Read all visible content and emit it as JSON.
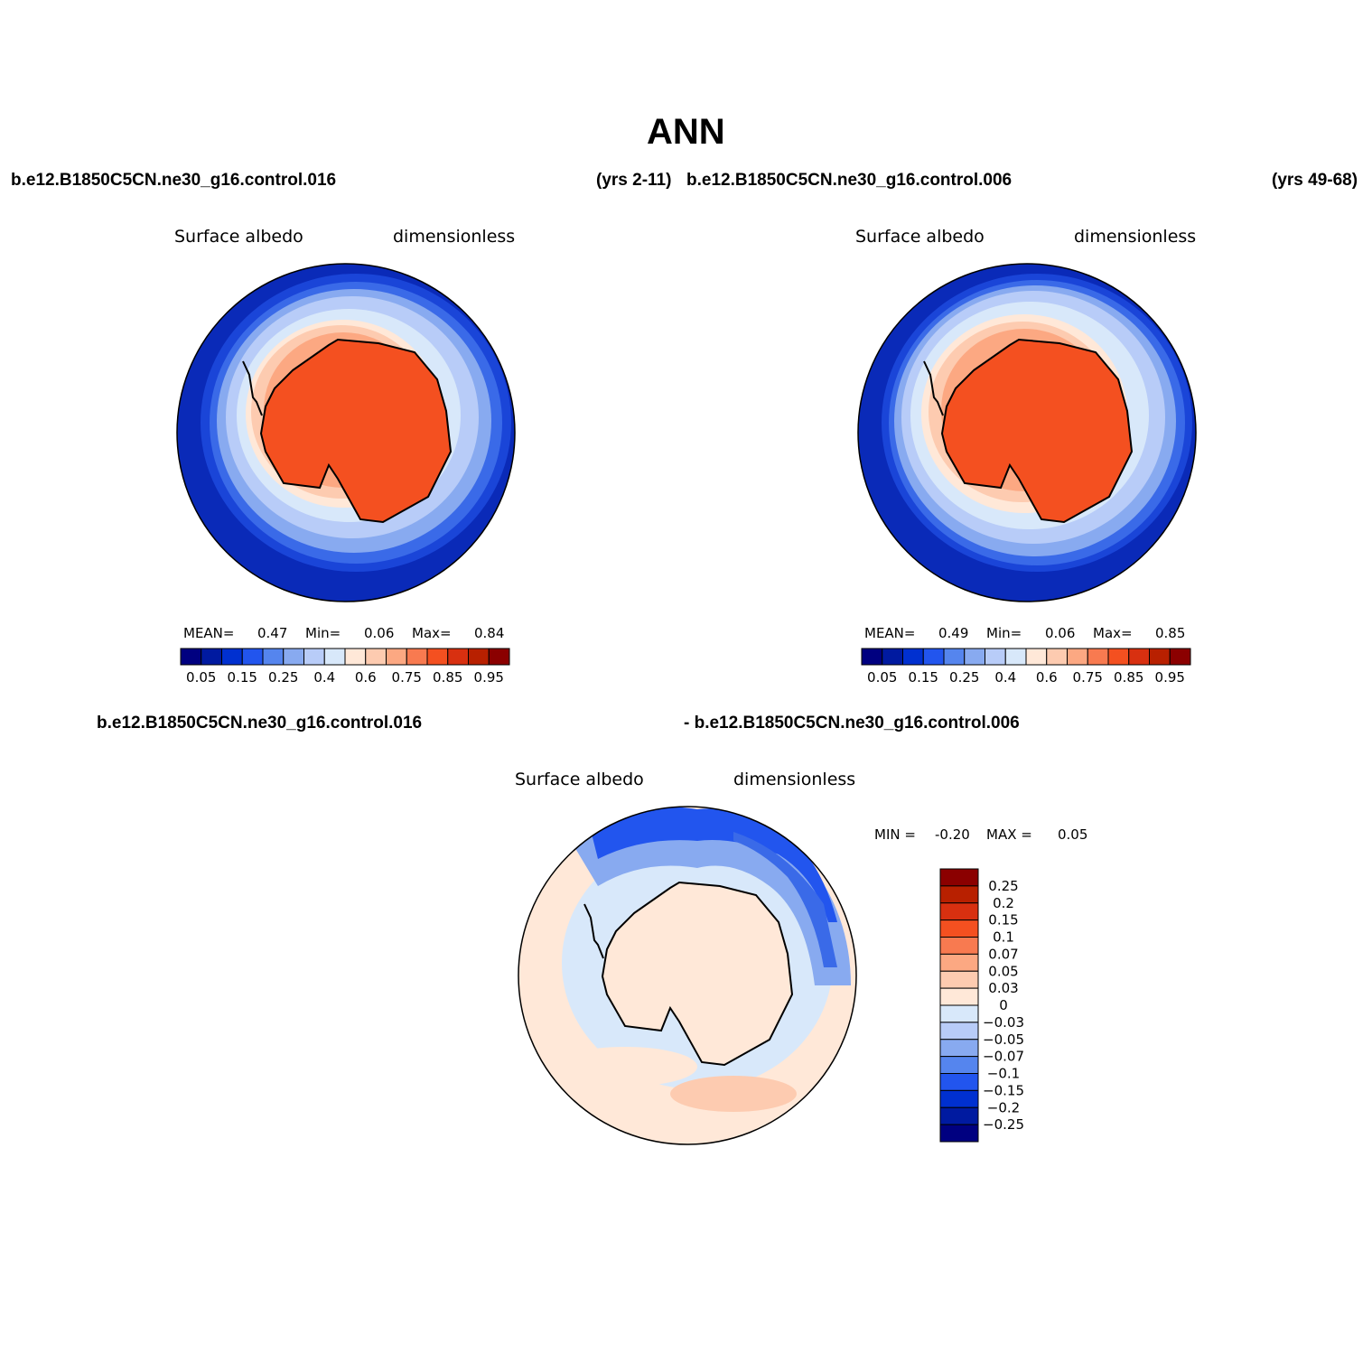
{
  "title": "ANN",
  "top_labels": {
    "left_run": "b.e12.B1850C5CN.ne30_g16.control.016",
    "left_years": "(yrs 2-11)",
    "right_run": "b.e12.B1850C5CN.ne30_g16.control.006",
    "right_years": "(yrs 49-68)"
  },
  "panels": [
    {
      "variable": "Surface albedo",
      "units": "dimensionless",
      "stats": {
        "mean_label": "MEAN=",
        "mean": "0.47",
        "min_label": "Min=",
        "min": "0.06",
        "max_label": "Max=",
        "max": "0.84"
      }
    },
    {
      "variable": "Surface albedo",
      "units": "dimensionless",
      "stats": {
        "mean_label": "MEAN=",
        "mean": "0.49",
        "min_label": "Min=",
        "min": "0.06",
        "max_label": "Max=",
        "max": "0.85"
      }
    }
  ],
  "abs_colorbar": {
    "colors": [
      "#000080",
      "#001aa0",
      "#0030d0",
      "#2255ee",
      "#5585ee",
      "#88aaf0",
      "#b8ccf8",
      "#d8e8fa",
      "#ffe8d8",
      "#fdcbb0",
      "#fca882",
      "#f87a50",
      "#f45020",
      "#d83010",
      "#b82000",
      "#8b0000"
    ],
    "tick_labels": [
      "0.05",
      "0.15",
      "0.25",
      "0.4",
      "0.6",
      "0.75",
      "0.85",
      "0.95"
    ]
  },
  "diff_labels": {
    "run_a": "b.e12.B1850C5CN.ne30_g16.control.016",
    "run_b": "- b.e12.B1850C5CN.ne30_g16.control.006"
  },
  "diff_panel": {
    "variable": "Surface albedo",
    "units": "dimensionless",
    "min_label": "MIN =",
    "min": "-0.20",
    "max_label": "MAX =",
    "max": "0.05"
  },
  "diff_colorbar": {
    "colors": [
      "#8b0000",
      "#b82000",
      "#d83010",
      "#f45020",
      "#f87a50",
      "#fca882",
      "#fdcbb0",
      "#ffe8d8",
      "#d8e8fa",
      "#b8ccf8",
      "#88aaf0",
      "#5585ee",
      "#2255ee",
      "#0030d0",
      "#001aa0",
      "#000080"
    ],
    "tick_labels": [
      "0.25",
      "0.2",
      "0.15",
      "0.1",
      "0.07",
      "0.05",
      "0.03",
      "0",
      "−0.03",
      "−0.05",
      "−0.07",
      "−0.1",
      "−0.15",
      "−0.2",
      "−0.25"
    ]
  }
}
